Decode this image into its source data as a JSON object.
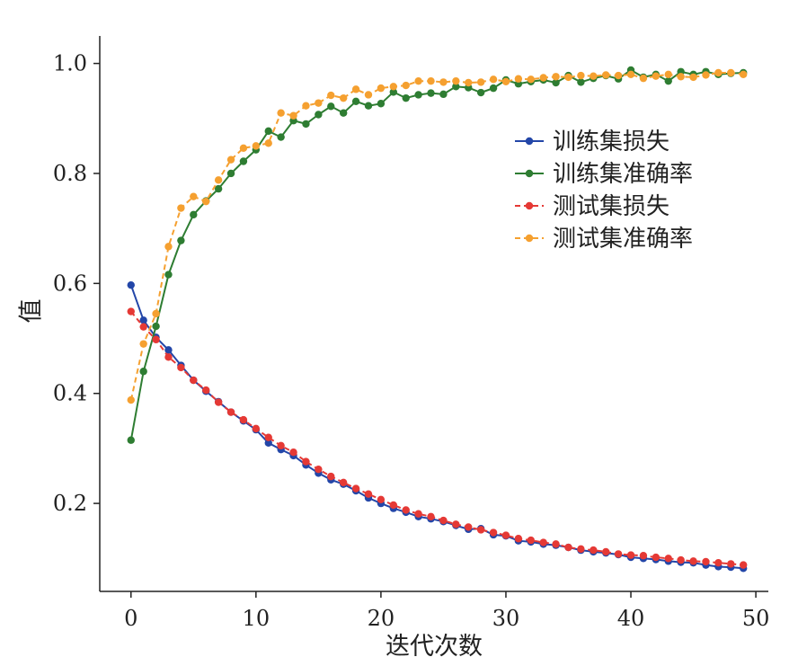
{
  "chart_data": {
    "type": "line",
    "title": "",
    "xlabel": "迭代次数",
    "ylabel": "值",
    "xlim": [
      -2.5,
      51
    ],
    "ylim": [
      0.04,
      1.05
    ],
    "xticks": [
      0,
      10,
      20,
      30,
      40,
      50
    ],
    "yticks": [
      0.2,
      0.4,
      0.6,
      0.8,
      1.0
    ],
    "xtick_labels": [
      "0",
      "10",
      "20",
      "30",
      "40",
      "50"
    ],
    "ytick_labels": [
      "0.2",
      "0.4",
      "0.6",
      "0.8",
      "1.0"
    ],
    "grid": false,
    "legend_position": "center-right",
    "x": [
      0,
      1,
      2,
      3,
      4,
      5,
      6,
      7,
      8,
      9,
      10,
      11,
      12,
      13,
      14,
      15,
      16,
      17,
      18,
      19,
      20,
      21,
      22,
      23,
      24,
      25,
      26,
      27,
      28,
      29,
      30,
      31,
      32,
      33,
      34,
      35,
      36,
      37,
      38,
      39,
      40,
      41,
      42,
      43,
      44,
      45,
      46,
      47,
      48,
      49
    ],
    "series": [
      {
        "name": "训练集损失",
        "color": "#2346a8",
        "dashed": false,
        "values": [
          0.597,
          0.533,
          0.502,
          0.479,
          0.451,
          0.424,
          0.404,
          0.385,
          0.366,
          0.35,
          0.334,
          0.31,
          0.298,
          0.287,
          0.27,
          0.255,
          0.243,
          0.235,
          0.223,
          0.21,
          0.2,
          0.191,
          0.184,
          0.176,
          0.172,
          0.167,
          0.16,
          0.153,
          0.154,
          0.143,
          0.141,
          0.132,
          0.13,
          0.126,
          0.124,
          0.12,
          0.115,
          0.112,
          0.11,
          0.107,
          0.102,
          0.1,
          0.098,
          0.095,
          0.093,
          0.092,
          0.088,
          0.085,
          0.084,
          0.082
        ]
      },
      {
        "name": "训练集准确率",
        "color": "#2e7d32",
        "dashed": false,
        "values": [
          0.315,
          0.44,
          0.522,
          0.616,
          0.678,
          0.725,
          0.75,
          0.772,
          0.8,
          0.822,
          0.843,
          0.877,
          0.866,
          0.896,
          0.89,
          0.907,
          0.922,
          0.91,
          0.931,
          0.923,
          0.927,
          0.948,
          0.937,
          0.943,
          0.946,
          0.944,
          0.958,
          0.956,
          0.947,
          0.955,
          0.97,
          0.963,
          0.967,
          0.97,
          0.965,
          0.978,
          0.966,
          0.973,
          0.978,
          0.972,
          0.988,
          0.975,
          0.98,
          0.968,
          0.985,
          0.98,
          0.985,
          0.98,
          0.982,
          0.983
        ]
      },
      {
        "name": "测试集损失",
        "color": "#e53935",
        "dashed": true,
        "values": [
          0.549,
          0.521,
          0.498,
          0.466,
          0.447,
          0.424,
          0.406,
          0.384,
          0.366,
          0.352,
          0.336,
          0.32,
          0.305,
          0.293,
          0.276,
          0.262,
          0.249,
          0.238,
          0.227,
          0.217,
          0.207,
          0.197,
          0.188,
          0.181,
          0.176,
          0.169,
          0.162,
          0.157,
          0.152,
          0.147,
          0.142,
          0.136,
          0.133,
          0.129,
          0.126,
          0.12,
          0.117,
          0.115,
          0.112,
          0.108,
          0.106,
          0.105,
          0.102,
          0.1,
          0.097,
          0.095,
          0.094,
          0.092,
          0.09,
          0.088
        ]
      },
      {
        "name": "测试集准确率",
        "color": "#f5a030",
        "dashed": true,
        "values": [
          0.388,
          0.49,
          0.545,
          0.667,
          0.737,
          0.758,
          0.749,
          0.788,
          0.825,
          0.846,
          0.85,
          0.855,
          0.91,
          0.905,
          0.923,
          0.928,
          0.942,
          0.937,
          0.953,
          0.943,
          0.955,
          0.958,
          0.96,
          0.968,
          0.968,
          0.966,
          0.968,
          0.965,
          0.966,
          0.971,
          0.967,
          0.972,
          0.971,
          0.974,
          0.976,
          0.975,
          0.978,
          0.977,
          0.979,
          0.978,
          0.98,
          0.973,
          0.977,
          0.98,
          0.976,
          0.975,
          0.979,
          0.983,
          0.983,
          0.98
        ]
      }
    ]
  }
}
